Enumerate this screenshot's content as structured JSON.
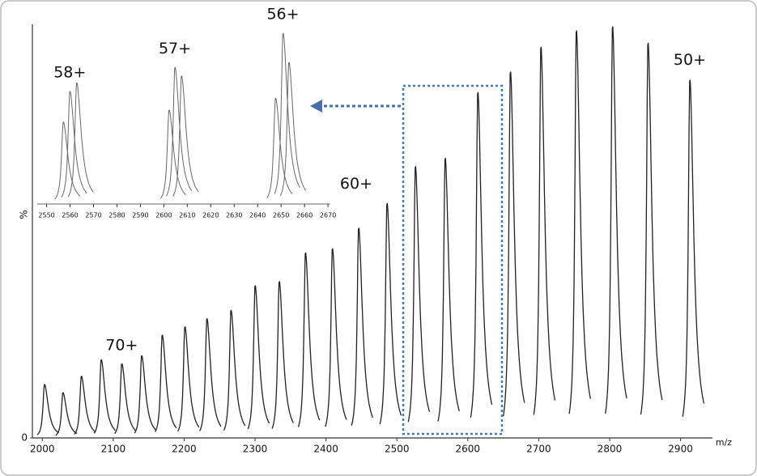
{
  "chart_data": [
    {
      "type": "peaks",
      "x_label": "m/z",
      "y_label": "%",
      "color": "#222222",
      "xlim": [
        1986,
        2945
      ],
      "ylim": [
        0,
        100
      ],
      "xticks": [
        2000,
        2100,
        2200,
        2300,
        2400,
        2500,
        2600,
        2700,
        2800,
        2900
      ],
      "yticks": [
        0
      ],
      "x": [
        2003,
        2029,
        2055,
        2083,
        2112,
        2140,
        2169,
        2201,
        2232,
        2266,
        2300,
        2334,
        2371,
        2409,
        2446,
        2486,
        2526,
        2568,
        2614,
        2660,
        2703,
        2753,
        2804,
        2854,
        2913
      ],
      "values": [
        13,
        11,
        15,
        19,
        18,
        20,
        25,
        27,
        29,
        31,
        37,
        38,
        45,
        46,
        51,
        57,
        66,
        68,
        84,
        89,
        95,
        99,
        100,
        96,
        87
      ],
      "annotations": [
        "70+",
        "60+",
        "50+"
      ]
    },
    {
      "type": "peaks",
      "color": "#666666",
      "xlim": [
        2546,
        2671
      ],
      "ylim": [
        0,
        100
      ],
      "xticks": [
        2550,
        2560,
        2570,
        2580,
        2590,
        2600,
        2610,
        2620,
        2630,
        2640,
        2650,
        2660,
        2670
      ],
      "x": [
        2557.1,
        2559.9,
        2562.8,
        2602.2,
        2604.7,
        2607.5,
        2647.6,
        2650.8,
        2653.3
      ],
      "values": [
        48,
        66,
        71,
        55,
        80,
        75,
        62,
        100,
        83
      ],
      "annotations": [
        "58+",
        "57+",
        "56+"
      ]
    }
  ]
}
